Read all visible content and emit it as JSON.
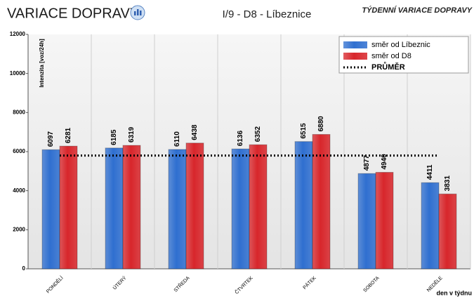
{
  "chart_data": {
    "type": "bar",
    "title": "VARIACE DOPRAVY",
    "subtitle": "I/9 - D8 - Líbeznice",
    "annotations": [
      "TÝDENNÍ VARIACE DOPRAVY"
    ],
    "y_label": "Intenzita [voz/24h]",
    "x_label": "den v týdnu",
    "categories": [
      "PONDĚLÍ",
      "ÚTERÝ",
      "STŘEDA",
      "ČTVRTEK",
      "PÁTEK",
      "SOBOTA",
      "NEDĚLE"
    ],
    "series": [
      {
        "name": "směr od Líbeznic",
        "color": "#2f6fd0",
        "values": [
          6097,
          6185,
          6110,
          6136,
          6515,
          4877,
          4411
        ]
      },
      {
        "name": "směr od D8",
        "color": "#d8262b",
        "values": [
          6281,
          6319,
          6438,
          6352,
          6880,
          4940,
          3831
        ]
      },
      {
        "name": "PRŮMĚR",
        "type": "line",
        "style": "dotted",
        "color": "#000000",
        "values": [
          5800,
          5800,
          5800,
          5800,
          5800,
          5800,
          5800
        ]
      }
    ],
    "ylim": [
      0,
      12000
    ],
    "yticks": [
      0,
      2000,
      4000,
      6000,
      8000,
      10000,
      12000
    ],
    "grid": "x",
    "legend": "upper right"
  }
}
